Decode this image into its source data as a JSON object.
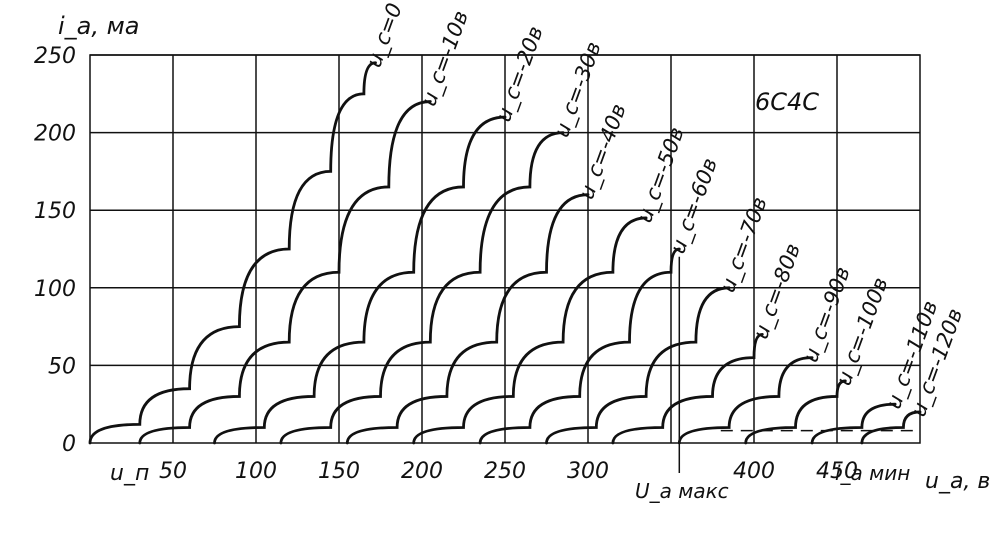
{
  "chart_data": {
    "type": "line",
    "title": "6С4С",
    "xlabel": "u_a, в",
    "ylabel": "i_a, ма",
    "xlim": [
      0,
      500
    ],
    "ylim": [
      0,
      250
    ],
    "x_ticks": [
      "50",
      "100",
      "150",
      "200",
      "250",
      "300",
      "400",
      "450"
    ],
    "y_ticks": [
      "250",
      "200",
      "150",
      "100",
      "50",
      "0"
    ],
    "annotations": {
      "u_p": "u_п",
      "u_a_max": "U_a макс",
      "i_a_min": "i_a мин",
      "u_a_max_value": 355,
      "i_a_min_value": 8
    },
    "series": [
      {
        "name": "u_c=0",
        "points": [
          [
            0,
            0
          ],
          [
            30,
            12
          ],
          [
            60,
            35
          ],
          [
            90,
            75
          ],
          [
            120,
            125
          ],
          [
            145,
            175
          ],
          [
            165,
            225
          ],
          [
            172,
            245
          ]
        ]
      },
      {
        "name": "u_c=-10в",
        "points": [
          [
            30,
            0
          ],
          [
            60,
            10
          ],
          [
            90,
            30
          ],
          [
            120,
            65
          ],
          [
            150,
            110
          ],
          [
            180,
            165
          ],
          [
            205,
            220
          ]
        ]
      },
      {
        "name": "u_c=-20в",
        "points": [
          [
            75,
            0
          ],
          [
            105,
            10
          ],
          [
            135,
            30
          ],
          [
            165,
            65
          ],
          [
            195,
            110
          ],
          [
            225,
            165
          ],
          [
            250,
            210
          ]
        ]
      },
      {
        "name": "u_c=-30в",
        "points": [
          [
            115,
            0
          ],
          [
            145,
            10
          ],
          [
            175,
            30
          ],
          [
            205,
            65
          ],
          [
            235,
            110
          ],
          [
            265,
            165
          ],
          [
            285,
            200
          ]
        ]
      },
      {
        "name": "u_c=-40в",
        "points": [
          [
            155,
            0
          ],
          [
            185,
            10
          ],
          [
            215,
            30
          ],
          [
            245,
            65
          ],
          [
            275,
            110
          ],
          [
            300,
            160
          ]
        ]
      },
      {
        "name": "u_c=-50в",
        "points": [
          [
            195,
            0
          ],
          [
            225,
            10
          ],
          [
            255,
            30
          ],
          [
            285,
            65
          ],
          [
            315,
            110
          ],
          [
            335,
            145
          ]
        ]
      },
      {
        "name": "u_c=-60в",
        "points": [
          [
            235,
            0
          ],
          [
            265,
            10
          ],
          [
            295,
            30
          ],
          [
            325,
            65
          ],
          [
            350,
            110
          ],
          [
            355,
            125
          ]
        ]
      },
      {
        "name": "u_c=-70в",
        "points": [
          [
            275,
            0
          ],
          [
            305,
            10
          ],
          [
            335,
            30
          ],
          [
            365,
            65
          ],
          [
            385,
            100
          ]
        ]
      },
      {
        "name": "u_c=-80в",
        "points": [
          [
            315,
            0
          ],
          [
            345,
            10
          ],
          [
            375,
            30
          ],
          [
            400,
            55
          ],
          [
            405,
            70
          ]
        ]
      },
      {
        "name": "u_c=-90в",
        "points": [
          [
            355,
            0
          ],
          [
            385,
            10
          ],
          [
            415,
            30
          ],
          [
            435,
            55
          ]
        ]
      },
      {
        "name": "u_c=-100в",
        "points": [
          [
            395,
            0
          ],
          [
            425,
            10
          ],
          [
            450,
            30
          ],
          [
            455,
            40
          ]
        ]
      },
      {
        "name": "u_c=-110в",
        "points": [
          [
            435,
            0
          ],
          [
            465,
            10
          ],
          [
            485,
            25
          ]
        ]
      },
      {
        "name": "u_c=-120в",
        "points": [
          [
            465,
            0
          ],
          [
            490,
            10
          ],
          [
            500,
            20
          ]
        ]
      }
    ]
  }
}
